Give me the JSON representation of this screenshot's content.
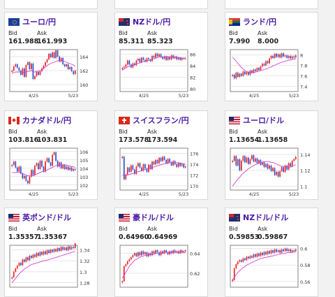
{
  "cards": [
    {
      "name": "eurjpy",
      "flag": "eu",
      "pair": "ユーロ/円",
      "bid_label": "Bid",
      "ask_label": "Ask",
      "bid": "161.988",
      "ask": "161.993",
      "chart": {
        "xlabels": [
          "4/25",
          "5/23"
        ],
        "ylabels": [
          "164",
          "162",
          "160"
        ],
        "ymin": 159,
        "ymax": 165,
        "closes": [
          162.0,
          162.6,
          162.9,
          162.4,
          162.0,
          161.4,
          162.3,
          161.1,
          162.8,
          163.2,
          162.2,
          163.0,
          160.8,
          161.2,
          161.8,
          161.4,
          161.9,
          162.3,
          162.7,
          163.2,
          163.6,
          164.4,
          163.9,
          164.6,
          163.8,
          164.9,
          164.0,
          163.3,
          163.8,
          162.9,
          162.6,
          162.9,
          162.2,
          162.5,
          161.9,
          161.5,
          162.0
        ],
        "ma": [
          161.6,
          161.7,
          161.8,
          161.8,
          161.8,
          161.8,
          161.8,
          161.7,
          161.8,
          161.9,
          161.9,
          162.0,
          161.8,
          161.8,
          161.9,
          161.9,
          162.0,
          162.1,
          162.3,
          162.5,
          162.7,
          162.9,
          163.0,
          163.1,
          163.2,
          163.3,
          163.4,
          163.4,
          163.4,
          163.4,
          163.3,
          163.2,
          163.1,
          163.0,
          162.9,
          162.8,
          162.6
        ]
      }
    },
    {
      "name": "nzdjpy",
      "flag": "nz",
      "pair": "NZドル/円",
      "bid_label": "Bid",
      "ask_label": "Ask",
      "bid": "85.311",
      "ask": "85.323",
      "chart": {
        "xlabels": [
          "4/25",
          "5/23"
        ],
        "ylabels": [
          "86",
          "84",
          "82",
          "80"
        ],
        "ymin": 79.5,
        "ymax": 86.8,
        "closes": [
          83.6,
          83.8,
          84.2,
          84.9,
          84.2,
          83.7,
          84.4,
          84.1,
          84.9,
          85.2,
          84.6,
          85.4,
          85.0,
          84.7,
          85.3,
          85.1,
          84.8,
          85.7,
          85.4,
          86.1,
          85.6,
          86.0,
          85.5,
          85.2,
          85.6,
          85.0,
          85.5,
          85.1,
          85.8,
          85.3,
          85.6,
          85.1,
          85.4,
          85.0,
          85.3,
          85.2,
          85.3
        ],
        "ma": [
          83.2,
          83.4,
          83.6,
          83.8,
          83.9,
          84.0,
          84.1,
          84.2,
          84.3,
          84.4,
          84.5,
          84.6,
          84.7,
          84.8,
          84.8,
          84.9,
          85.0,
          85.1,
          85.2,
          85.3,
          85.4,
          85.5,
          85.5,
          85.5,
          85.6,
          85.6,
          85.6,
          85.5,
          85.5,
          85.5,
          85.5,
          85.5,
          85.4,
          85.4,
          85.3,
          85.3,
          85.3
        ]
      }
    },
    {
      "name": "zarjpy",
      "flag": "za",
      "pair": "ランド/円",
      "bid_label": "Bid",
      "ask_label": "Ask",
      "bid": "7.990",
      "ask": "8.000",
      "chart": {
        "xlabels": [
          "4/25",
          "5/23"
        ],
        "ylabels": [
          "8",
          "7.8",
          "7.6",
          "7.4"
        ],
        "ymin": 7.3,
        "ymax": 8.1,
        "closes": [
          7.62,
          7.55,
          7.66,
          7.58,
          7.64,
          7.6,
          7.68,
          7.63,
          7.67,
          7.62,
          7.7,
          7.66,
          7.72,
          7.69,
          7.75,
          7.71,
          7.78,
          7.83,
          7.8,
          7.88,
          7.84,
          7.93,
          7.98,
          7.94,
          8.02,
          7.96,
          8.01,
          7.95,
          8.03,
          7.97,
          7.99,
          7.94,
          7.98,
          7.93,
          7.97,
          7.95,
          7.99
        ],
        "ma": [
          7.95,
          7.92,
          7.88,
          7.84,
          7.8,
          7.76,
          7.73,
          7.7,
          7.68,
          7.67,
          7.66,
          7.66,
          7.66,
          7.67,
          7.68,
          7.69,
          7.7,
          7.71,
          7.72,
          7.73,
          7.74,
          7.76,
          7.77,
          7.79,
          7.8,
          7.82,
          7.83,
          7.85,
          7.86,
          7.87,
          7.88,
          7.89,
          7.9,
          7.9,
          7.91,
          7.92,
          7.92
        ]
      }
    },
    {
      "name": "cadjpy",
      "flag": "ca",
      "pair": "カナダドル/円",
      "bid_label": "Bid",
      "ask_label": "Ask",
      "bid": "103.816",
      "ask": "103.831",
      "chart": {
        "xlabels": [
          "4/25",
          "5/23"
        ],
        "ylabels": [
          "106",
          "105",
          "104",
          "103",
          "102"
        ],
        "ymin": 101.4,
        "ymax": 106.4,
        "closes": [
          104.4,
          104.8,
          104.1,
          103.6,
          104.2,
          103.4,
          102.8,
          103.1,
          102.5,
          102.2,
          103.0,
          103.8,
          103.2,
          104.3,
          104.6,
          103.9,
          104.9,
          104.2,
          103.6,
          104.8,
          105.2,
          104.7,
          104.3,
          105.6,
          105.9,
          104.9,
          104.2,
          104.7,
          104.0,
          104.4,
          103.9,
          104.2,
          103.8,
          104.1,
          103.7,
          103.9,
          103.8
        ],
        "ma": [
          103.5,
          103.5,
          103.5,
          103.5,
          103.5,
          103.4,
          103.3,
          103.3,
          103.2,
          103.1,
          103.1,
          103.1,
          103.1,
          103.2,
          103.3,
          103.4,
          103.5,
          103.6,
          103.6,
          103.7,
          103.8,
          103.9,
          104.0,
          104.1,
          104.2,
          104.3,
          104.3,
          104.4,
          104.4,
          104.4,
          104.4,
          104.4,
          104.3,
          104.3,
          104.2,
          104.2,
          104.1
        ]
      }
    },
    {
      "name": "chfjpy",
      "flag": "ch",
      "pair": "スイスフラン/円",
      "bid_label": "Bid",
      "ask_label": "Ask",
      "bid": "173.578",
      "ask": "173.594",
      "chart": {
        "xlabels": [
          "4/25",
          "5/23"
        ],
        "ylabels": [
          "176",
          "174",
          "172",
          "170"
        ],
        "ymin": 169.2,
        "ymax": 177.0,
        "closes": [
          175.4,
          171.2,
          172.1,
          173.4,
          172.6,
          173.8,
          173.0,
          172.2,
          173.6,
          174.2,
          173.4,
          172.8,
          174.0,
          173.2,
          172.6,
          173.9,
          173.1,
          174.5,
          174.0,
          174.8,
          174.2,
          175.2,
          174.6,
          175.4,
          174.8,
          174.2,
          175.0,
          174.4,
          173.8,
          174.6,
          174.0,
          173.5,
          174.2,
          173.7,
          174.0,
          173.4,
          173.6
        ],
        "ma": [
          172.0,
          171.9,
          171.9,
          172.0,
          172.1,
          172.2,
          172.3,
          172.4,
          172.5,
          172.6,
          172.7,
          172.8,
          172.9,
          173.0,
          173.1,
          173.2,
          173.3,
          173.4,
          173.5,
          173.6,
          173.7,
          173.8,
          173.9,
          174.0,
          174.1,
          174.2,
          174.2,
          174.3,
          174.3,
          174.3,
          174.3,
          174.3,
          174.3,
          174.2,
          174.2,
          174.1,
          174.1
        ]
      }
    },
    {
      "name": "eurusd",
      "flag": "us",
      "pair": "ユーロ/ドル",
      "bid_label": "Bid",
      "ask_label": "Ask",
      "bid": "1.13654",
      "ask": "1.13658",
      "chart": {
        "xlabels": [
          "4/25",
          "5/23"
        ],
        "ylabels": [
          "1.14",
          "1.12",
          "1.1"
        ],
        "ymin": 1.095,
        "ymax": 1.148,
        "closes": [
          1.132,
          1.138,
          1.126,
          1.134,
          1.12,
          1.132,
          1.138,
          1.13,
          1.136,
          1.128,
          1.134,
          1.139,
          1.131,
          1.135,
          1.129,
          1.133,
          1.127,
          1.13,
          1.124,
          1.128,
          1.122,
          1.126,
          1.119,
          1.123,
          1.114,
          1.118,
          1.112,
          1.119,
          1.124,
          1.118,
          1.126,
          1.121,
          1.129,
          1.125,
          1.132,
          1.134,
          1.137
        ],
        "ma": [
          1.1,
          1.103,
          1.106,
          1.109,
          1.111,
          1.114,
          1.116,
          1.118,
          1.12,
          1.122,
          1.123,
          1.125,
          1.126,
          1.127,
          1.128,
          1.129,
          1.13,
          1.13,
          1.131,
          1.131,
          1.131,
          1.131,
          1.13,
          1.13,
          1.129,
          1.128,
          1.127,
          1.126,
          1.125,
          1.125,
          1.125,
          1.124,
          1.124,
          1.124,
          1.125,
          1.126,
          1.127
        ]
      }
    },
    {
      "name": "gbpusd",
      "flag": "us",
      "pair": "英ポンド/ドル",
      "bid_label": "Bid",
      "ask_label": "Ask",
      "bid": "1.35357",
      "ask": "1.35367",
      "chart": {
        "xlabels": [],
        "ylabels": [
          "1.34",
          "1.32",
          "1.3",
          "1.28"
        ],
        "ymin": 1.272,
        "ymax": 1.348,
        "closes": [
          1.29,
          1.3,
          1.306,
          1.311,
          1.316,
          1.312,
          1.322,
          1.318,
          1.326,
          1.321,
          1.329,
          1.325,
          1.331,
          1.327,
          1.334,
          1.329,
          1.336,
          1.331,
          1.337,
          1.332,
          1.339,
          1.334,
          1.34,
          1.336,
          1.341,
          1.337,
          1.343,
          1.338,
          1.345,
          1.34,
          1.344,
          1.339,
          1.346,
          1.341,
          1.345,
          1.343,
          1.354
        ],
        "ma": [
          1.28,
          1.284,
          1.288,
          1.292,
          1.296,
          1.299,
          1.302,
          1.305,
          1.307,
          1.309,
          1.311,
          1.313,
          1.314,
          1.315,
          1.316,
          1.317,
          1.318,
          1.319,
          1.32,
          1.32,
          1.321,
          1.322,
          1.323,
          1.324,
          1.325,
          1.326,
          1.327,
          1.328,
          1.329,
          1.33,
          1.331,
          1.332,
          1.333,
          1.334,
          1.335,
          1.336,
          1.337
        ]
      }
    },
    {
      "name": "audusd",
      "flag": "us",
      "pair": "豪ドル/ドル",
      "bid_label": "Bid",
      "ask_label": "Ask",
      "bid": "0.64960",
      "ask": "0.64969",
      "chart": {
        "xlabels": [],
        "ylabels": [
          "0.64",
          "0.62"
        ],
        "ymin": 0.606,
        "ymax": 0.648,
        "closes": [
          0.612,
          0.627,
          0.629,
          0.632,
          0.634,
          0.636,
          0.638,
          0.64,
          0.637,
          0.641,
          0.638,
          0.642,
          0.639,
          0.641,
          0.637,
          0.64,
          0.638,
          0.642,
          0.64,
          0.643,
          0.641,
          0.638,
          0.642,
          0.64,
          0.643,
          0.641,
          0.639,
          0.642,
          0.64,
          0.643,
          0.641,
          0.642,
          0.64,
          0.643,
          0.641,
          0.642,
          0.643
        ],
        "ma": [
          0.615,
          0.618,
          0.621,
          0.624,
          0.627,
          0.629,
          0.631,
          0.633,
          0.634,
          0.635,
          0.636,
          0.637,
          0.637,
          0.638,
          0.638,
          0.638,
          0.639,
          0.639,
          0.639,
          0.64,
          0.64,
          0.64,
          0.64,
          0.64,
          0.641,
          0.641,
          0.641,
          0.641,
          0.641,
          0.641,
          0.641,
          0.641,
          0.641,
          0.641,
          0.641,
          0.641,
          0.641
        ]
      }
    },
    {
      "name": "nzdusd",
      "flag": "nz",
      "pair": "NZドル/ドル",
      "bid_label": "Bid",
      "ask_label": "Ask",
      "bid": "0.59853",
      "ask": "0.59867",
      "chart": {
        "xlabels": [],
        "ylabels": [
          "0.6",
          "0.58",
          "0.56"
        ],
        "ymin": 0.553,
        "ymax": 0.604,
        "closes": [
          0.562,
          0.576,
          0.581,
          0.584,
          0.586,
          0.584,
          0.588,
          0.586,
          0.59,
          0.588,
          0.591,
          0.589,
          0.593,
          0.59,
          0.594,
          0.591,
          0.595,
          0.592,
          0.596,
          0.593,
          0.597,
          0.594,
          0.598,
          0.595,
          0.599,
          0.596,
          0.598,
          0.595,
          0.599,
          0.597,
          0.6,
          0.597,
          0.599,
          0.596,
          0.598,
          0.597,
          0.599
        ],
        "ma": [
          0.562,
          0.565,
          0.568,
          0.571,
          0.573,
          0.575,
          0.577,
          0.578,
          0.58,
          0.581,
          0.582,
          0.583,
          0.584,
          0.585,
          0.586,
          0.587,
          0.588,
          0.588,
          0.589,
          0.589,
          0.59,
          0.59,
          0.591,
          0.591,
          0.592,
          0.592,
          0.593,
          0.593,
          0.594,
          0.594,
          0.594,
          0.595,
          0.595,
          0.595,
          0.595,
          0.596,
          0.596
        ]
      }
    }
  ],
  "colors": {
    "up": "#e8272a",
    "down": "#3355cc",
    "ma": "#d43fcf",
    "grid": "#cfcfcf",
    "title": "#4a1aa8"
  }
}
